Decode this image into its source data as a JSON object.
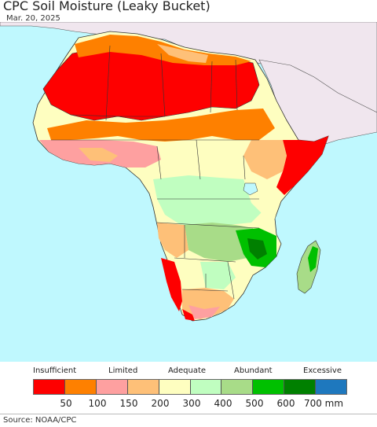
{
  "title": "CPC Soil Moisture (Leaky Bucket)",
  "date": "Mar. 20, 2025",
  "source": "Source: NOAA/CPC",
  "legend": {
    "categories": [
      "Insufficient",
      "Limited",
      "Adequate",
      "Abundant",
      "Excessive"
    ],
    "colors": [
      "#fe0000",
      "#fe8000",
      "#fea0a0",
      "#fec078",
      "#fefec0",
      "#c0fec0",
      "#a8dc88",
      "#00c000",
      "#008000",
      "#1e78be"
    ],
    "tick_labels": [
      "50",
      "100",
      "150",
      "200",
      "300",
      "400",
      "500",
      "600",
      "700 mm"
    ]
  },
  "map_colors": {
    "ocean": "#bff8fe",
    "other_land": "#f0e6ee",
    "border": "#333333"
  }
}
